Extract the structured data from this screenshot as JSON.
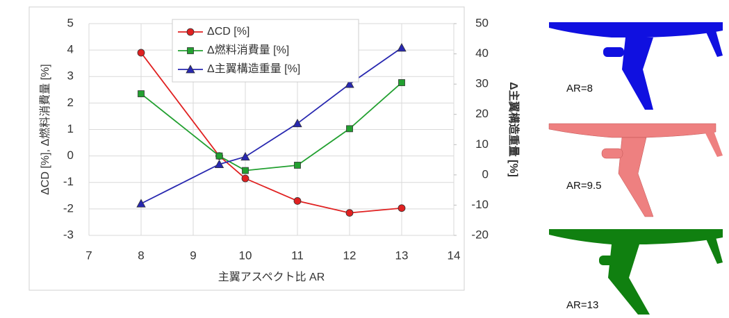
{
  "chart_data": {
    "type": "line",
    "x": [
      8,
      9.5,
      10,
      11,
      12,
      13
    ],
    "series": [
      {
        "name": "ΔCD [%]",
        "color": "#e02020",
        "marker": "circle",
        "values": [
          3.9,
          0,
          -0.85,
          -1.7,
          -2.15,
          -1.97
        ]
      },
      {
        "name": "Δ燃料消費量 [%]",
        "color": "#22a030",
        "marker": "square",
        "values": [
          2.35,
          0,
          -0.55,
          -0.35,
          1.03,
          2.77
        ]
      },
      {
        "name": "Δ主翼構造重量 [%]",
        "color": "#2828b0",
        "marker": "triangle",
        "axis": "y2",
        "values": [
          -9.5,
          3.5,
          6,
          17,
          30,
          42
        ]
      }
    ],
    "xlim": [
      7,
      14
    ],
    "xticks": [
      7,
      8,
      9,
      10,
      11,
      12,
      13,
      14
    ],
    "ylim": [
      -3,
      5
    ],
    "yticks": [
      -3,
      -2,
      -1,
      0,
      1,
      2,
      3,
      4,
      5
    ],
    "y2lim": [
      -20,
      50
    ],
    "y2ticks": [
      -20,
      -10,
      0,
      10,
      20,
      30,
      40,
      50
    ],
    "xlabel": "主翼アスペクト比 AR",
    "ylabel": "ΔCD [%], Δ燃料消費量 [%]",
    "y2label": "Δ主翼構造重量 [%]",
    "grid": true,
    "legend": "top"
  },
  "side_images": [
    {
      "label": "AR=8"
    },
    {
      "label": "AR=9.5"
    },
    {
      "label": "AR=13"
    }
  ]
}
